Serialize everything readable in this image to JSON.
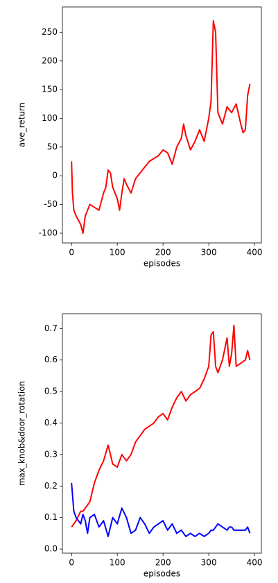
{
  "chart_data": [
    {
      "type": "line",
      "xlabel": "episodes",
      "ylabel": "ave_return",
      "x": [
        0,
        2,
        5,
        10,
        20,
        25,
        30,
        40,
        50,
        60,
        70,
        75,
        80,
        85,
        90,
        100,
        105,
        110,
        115,
        120,
        130,
        140,
        150,
        160,
        170,
        180,
        190,
        200,
        210,
        220,
        230,
        240,
        245,
        250,
        260,
        270,
        280,
        290,
        300,
        305,
        310,
        315,
        320,
        330,
        340,
        350,
        360,
        370,
        375,
        380,
        385,
        390
      ],
      "series": [
        {
          "color": "#ff0000",
          "values": [
            25,
            -30,
            -60,
            -70,
            -85,
            -100,
            -70,
            -50,
            -55,
            -60,
            -30,
            -20,
            10,
            5,
            -20,
            -40,
            -60,
            -30,
            -5,
            -15,
            -30,
            -5,
            5,
            15,
            25,
            30,
            35,
            45,
            40,
            20,
            50,
            65,
            90,
            70,
            45,
            60,
            80,
            60,
            100,
            130,
            270,
            250,
            110,
            90,
            120,
            110,
            125,
            90,
            75,
            80,
            140,
            160
          ]
        }
      ],
      "xlim": [
        -20,
        415
      ],
      "xticks": [
        0,
        100,
        200,
        300,
        400
      ],
      "ylim": [
        -117,
        294
      ],
      "yticks": [
        -100,
        -50,
        0,
        50,
        100,
        150,
        200,
        250
      ]
    },
    {
      "type": "line",
      "xlabel": "episodes",
      "ylabel": "max_knob&door_rotation",
      "x": [
        0,
        5,
        10,
        20,
        25,
        30,
        35,
        40,
        50,
        60,
        70,
        80,
        90,
        100,
        110,
        120,
        130,
        140,
        150,
        160,
        170,
        180,
        190,
        200,
        210,
        220,
        230,
        240,
        250,
        260,
        270,
        280,
        290,
        300,
        305,
        310,
        315,
        320,
        330,
        340,
        345,
        350,
        355,
        360,
        370,
        380,
        385,
        390
      ],
      "series": [
        {
          "color": "#ff0000",
          "values": [
            0.07,
            0.08,
            0.09,
            0.12,
            0.12,
            0.13,
            0.14,
            0.15,
            0.21,
            0.25,
            0.28,
            0.33,
            0.27,
            0.26,
            0.3,
            0.28,
            0.3,
            0.34,
            0.36,
            0.38,
            0.39,
            0.4,
            0.42,
            0.43,
            0.41,
            0.45,
            0.48,
            0.5,
            0.47,
            0.49,
            0.5,
            0.51,
            0.54,
            0.58,
            0.68,
            0.69,
            0.58,
            0.56,
            0.6,
            0.67,
            0.58,
            0.62,
            0.71,
            0.58,
            0.59,
            0.6,
            0.63,
            0.6
          ]
        },
        {
          "color": "#0000ff",
          "values": [
            0.21,
            0.12,
            0.1,
            0.08,
            0.11,
            0.09,
            0.05,
            0.1,
            0.11,
            0.07,
            0.09,
            0.04,
            0.1,
            0.08,
            0.13,
            0.1,
            0.05,
            0.06,
            0.1,
            0.08,
            0.05,
            0.07,
            0.08,
            0.09,
            0.06,
            0.08,
            0.05,
            0.06,
            0.04,
            0.05,
            0.04,
            0.05,
            0.04,
            0.05,
            0.06,
            0.06,
            0.07,
            0.08,
            0.07,
            0.06,
            0.07,
            0.07,
            0.06,
            0.06,
            0.06,
            0.06,
            0.07,
            0.05
          ]
        }
      ],
      "xlim": [
        -20,
        415
      ],
      "xticks": [
        0,
        100,
        200,
        300,
        400
      ],
      "ylim": [
        -0.013,
        0.747
      ],
      "yticks": [
        {
          "value": 0,
          "label": "0.0"
        },
        0.1,
        0.2,
        0.3,
        0.4,
        0.5,
        0.6,
        0.7
      ]
    }
  ]
}
